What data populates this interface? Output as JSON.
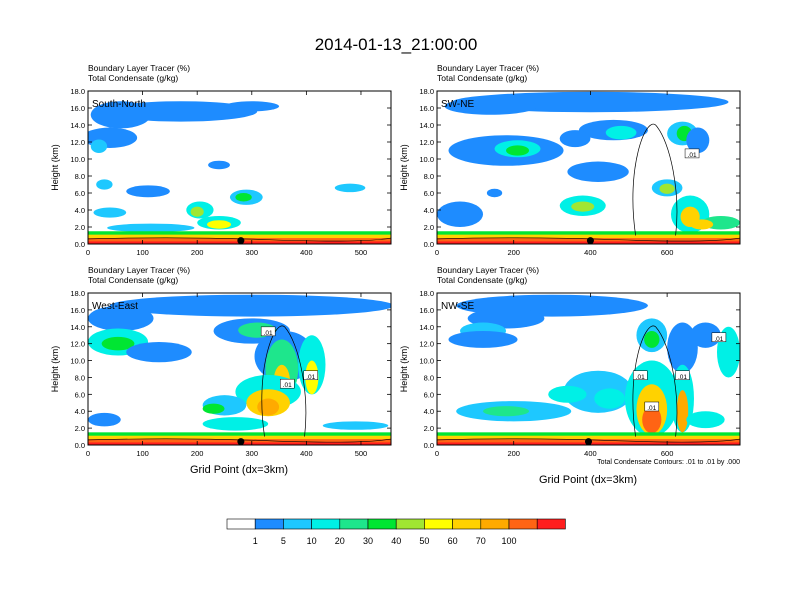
{
  "title": "2014-01-13_21:00:00",
  "panel_header": {
    "line1": "Boundary Layer Tracer",
    "unit1": "(%)",
    "line2": "Total Condensate",
    "unit2": "(g/kg)"
  },
  "x_axis_label": "Grid Point (dx=3km)",
  "y_axis_label": "Height (km)",
  "contour_note": "Total Condensate Contours: .01 to .01 by .000",
  "contour_label": ".01",
  "colorbar": {
    "colors": [
      "#ffffff",
      "#1e8cff",
      "#1ec8ff",
      "#00f0e6",
      "#1ee68c",
      "#00e632",
      "#a0e632",
      "#ffff00",
      "#ffd200",
      "#ffaa00",
      "#ff6414",
      "#ff1e1e"
    ],
    "labels": [
      "1",
      "5",
      "10",
      "20",
      "30",
      "40",
      "50",
      "60",
      "70",
      "100"
    ]
  },
  "chart_data": [
    {
      "type": "heatmap",
      "panel": "South-North",
      "label": "South-North",
      "xlim": [
        0,
        555
      ],
      "ylim": [
        0,
        18
      ],
      "xticks": [
        0,
        100,
        200,
        300,
        400,
        500
      ],
      "yticks": [
        "0.0",
        "2.0",
        "4.0",
        "6.0",
        "8.0",
        "10.0",
        "12.0",
        "14.0",
        "16.0",
        "18.0"
      ],
      "marker_x": 280,
      "contour_labels": []
    },
    {
      "type": "heatmap",
      "panel": "SW-NE",
      "label": "SW-NE",
      "xlim": [
        0,
        790
      ],
      "ylim": [
        0,
        18
      ],
      "xticks": [
        0,
        200,
        400,
        600
      ],
      "yticks": [
        "0.0",
        "2.0",
        "4.0",
        "6.0",
        "8.0",
        "10.0",
        "12.0",
        "14.0",
        "16.0",
        "18.0"
      ],
      "marker_x": 400,
      "contour_labels": [
        {
          "x": 665,
          "y": 10.6
        }
      ]
    },
    {
      "type": "heatmap",
      "panel": "West-East",
      "label": "West-East",
      "xlim": [
        0,
        555
      ],
      "ylim": [
        0,
        18
      ],
      "xticks": [
        0,
        100,
        200,
        300,
        400,
        500
      ],
      "yticks": [
        "0.0",
        "2.0",
        "4.0",
        "6.0",
        "8.0",
        "10.0",
        "12.0",
        "14.0",
        "16.0",
        "18.0"
      ],
      "marker_x": 280,
      "contour_labels": [
        {
          "x": 330,
          "y": 13.4
        },
        {
          "x": 408,
          "y": 8.2
        },
        {
          "x": 365,
          "y": 7.2
        }
      ]
    },
    {
      "type": "heatmap",
      "panel": "NW-SE",
      "label": "NW-SE",
      "xlim": [
        0,
        790
      ],
      "ylim": [
        0,
        18
      ],
      "xticks": [
        0,
        200,
        400,
        600
      ],
      "yticks": [
        "0.0",
        "2.0",
        "4.0",
        "6.0",
        "8.0",
        "10.0",
        "12.0",
        "14.0",
        "16.0",
        "18.0"
      ],
      "marker_x": 395,
      "contour_labels": [
        {
          "x": 735,
          "y": 12.7
        },
        {
          "x": 530,
          "y": 8.2
        },
        {
          "x": 640,
          "y": 8.2
        },
        {
          "x": 560,
          "y": 4.5
        }
      ]
    }
  ]
}
